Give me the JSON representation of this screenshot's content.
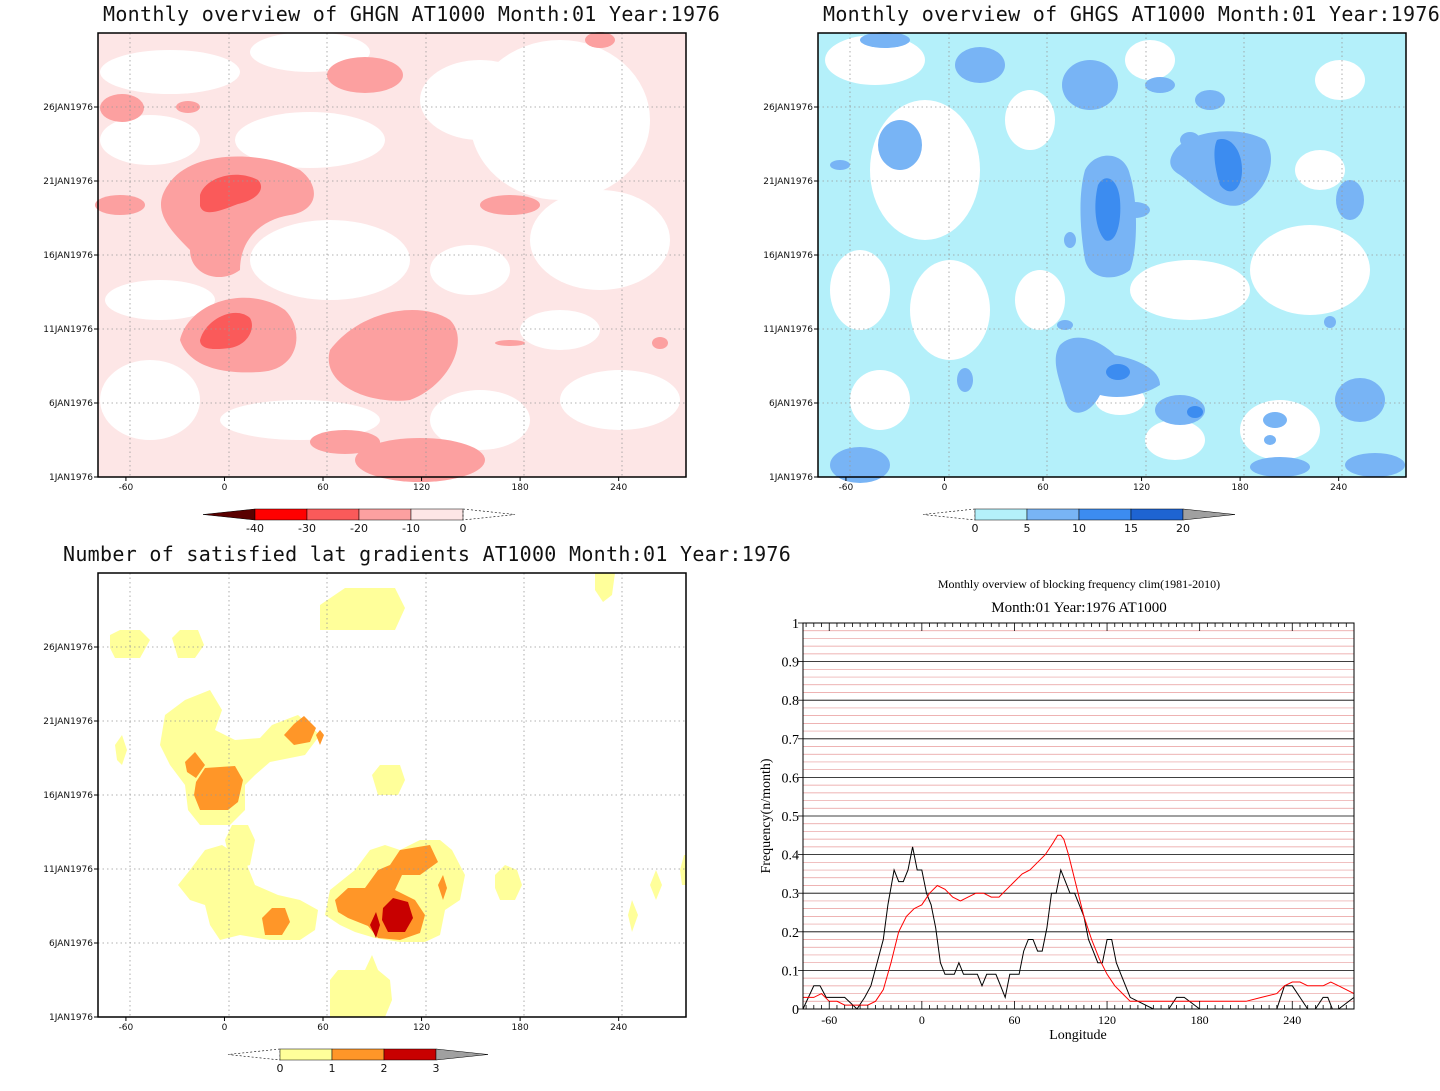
{
  "panels": {
    "ghgn": {
      "title": "Monthly overview of GHGN AT1000 Month:01 Year:1976",
      "type": "heatmap",
      "x_ticks": [
        "-60",
        "0",
        "60",
        "120",
        "180",
        "240"
      ],
      "y_ticks": [
        "1JAN1976",
        "6JAN1976",
        "11JAN1976",
        "16JAN1976",
        "21JAN1976",
        "26JAN1976"
      ],
      "colorbar": {
        "labels": [
          "-40",
          "-30",
          "-20",
          "-10",
          "0"
        ],
        "colors": [
          "#5a0000",
          "#ff0000",
          "#fa5a5a",
          "#fca0a0",
          "#fde6e6"
        ]
      }
    },
    "ghgs": {
      "title": "Monthly overview of GHGS AT1000 Month:01 Year:1976",
      "type": "heatmap",
      "x_ticks": [
        "-60",
        "0",
        "60",
        "120",
        "180",
        "240"
      ],
      "y_ticks": [
        "1JAN1976",
        "6JAN1976",
        "11JAN1976",
        "16JAN1976",
        "21JAN1976",
        "26JAN1976"
      ],
      "colorbar": {
        "labels": [
          "0",
          "5",
          "10",
          "15",
          "20"
        ],
        "colors": [
          "#b4f0fa",
          "#78b4f5",
          "#3c8cf0",
          "#1e64d2",
          "#a0a0a0"
        ]
      }
    },
    "lat": {
      "title": "Number of satisfied lat gradients AT1000 Month:01 Year:1976",
      "type": "heatmap",
      "x_ticks": [
        "-60",
        "0",
        "60",
        "120",
        "180",
        "240"
      ],
      "y_ticks": [
        "1JAN1976",
        "6JAN1976",
        "11JAN1976",
        "16JAN1976",
        "21JAN1976",
        "26JAN1976"
      ],
      "colorbar": {
        "labels": [
          "0",
          "1",
          "2",
          "3"
        ],
        "colors": [
          "#ffff9a",
          "#ff9628",
          "#c80000",
          "#a0a0a0"
        ]
      }
    },
    "freq": {
      "title": "Monthly overview of blocking frequency clim(1981-2010)",
      "subtitle": "Month:01 Year:1976  AT1000",
      "xlabel": "Longitude",
      "ylabel": "Frequency(n/month)"
    }
  },
  "chart_data": {
    "type": "line",
    "title": "Monthly overview of blocking frequency clim(1981-2010)",
    "subtitle": "Month:01 Year:1976  AT1000",
    "xlabel": "Longitude",
    "ylabel": "Frequency(n/month)",
    "xlim": [
      -77,
      280
    ],
    "ylim": [
      0,
      1
    ],
    "x_ticks": [
      -60,
      0,
      60,
      120,
      180,
      240
    ],
    "y_ticks": [
      0,
      0.1,
      0.2,
      0.3,
      0.4,
      0.5,
      0.6,
      0.7,
      0.8,
      0.9,
      1
    ],
    "grid": true,
    "series": [
      {
        "color": "#000000",
        "x": [
          -77,
          -70,
          -66,
          -62,
          -57,
          -50,
          -42,
          -37,
          -33,
          -29,
          -25,
          -22,
          -18,
          -15,
          -12,
          -9,
          -6,
          -3,
          0,
          3,
          6,
          9,
          12,
          15,
          18,
          21,
          24,
          27,
          30,
          33,
          36,
          39,
          42,
          45,
          48,
          51,
          54,
          57,
          60,
          63,
          66,
          69,
          72,
          75,
          78,
          81,
          84,
          87,
          90,
          93,
          96,
          99,
          102,
          105,
          108,
          111,
          114,
          117,
          120,
          123,
          126,
          129,
          135,
          150,
          160,
          165,
          170,
          180,
          195,
          210,
          225,
          230,
          235,
          240,
          245,
          250,
          255,
          260,
          263,
          266,
          270,
          280
        ],
        "y": [
          0,
          0.06,
          0.06,
          0.03,
          0.03,
          0.03,
          0,
          0.03,
          0.06,
          0.12,
          0.18,
          0.27,
          0.36,
          0.33,
          0.33,
          0.36,
          0.42,
          0.36,
          0.36,
          0.3,
          0.27,
          0.21,
          0.12,
          0.09,
          0.09,
          0.09,
          0.12,
          0.09,
          0.09,
          0.09,
          0.09,
          0.06,
          0.09,
          0.09,
          0.09,
          0.06,
          0.03,
          0.09,
          0.09,
          0.09,
          0.15,
          0.18,
          0.18,
          0.15,
          0.15,
          0.21,
          0.3,
          0.3,
          0.36,
          0.33,
          0.3,
          0.3,
          0.27,
          0.24,
          0.18,
          0.15,
          0.12,
          0.12,
          0.18,
          0.18,
          0.12,
          0.09,
          0.03,
          0,
          0,
          0.03,
          0.03,
          0,
          0,
          0,
          0,
          0,
          0.06,
          0.06,
          0.03,
          0,
          0,
          0.03,
          0.03,
          0,
          0,
          0.03
        ]
      },
      {
        "color": "#ff0000",
        "x": [
          -77,
          -70,
          -65,
          -60,
          -55,
          -50,
          -45,
          -40,
          -35,
          -30,
          -25,
          -20,
          -15,
          -10,
          -5,
          0,
          5,
          10,
          15,
          20,
          25,
          30,
          35,
          40,
          45,
          50,
          55,
          60,
          65,
          70,
          75,
          80,
          85,
          88,
          90,
          92,
          95,
          100,
          105,
          110,
          115,
          120,
          125,
          130,
          135,
          140,
          150,
          160,
          170,
          180,
          190,
          200,
          210,
          220,
          230,
          235,
          240,
          245,
          250,
          255,
          260,
          265,
          270,
          275,
          280
        ],
        "y": [
          0.03,
          0.03,
          0.04,
          0.02,
          0.02,
          0.01,
          0.01,
          0.01,
          0.01,
          0.02,
          0.05,
          0.12,
          0.2,
          0.24,
          0.26,
          0.27,
          0.3,
          0.32,
          0.31,
          0.29,
          0.28,
          0.29,
          0.3,
          0.3,
          0.29,
          0.29,
          0.31,
          0.33,
          0.35,
          0.36,
          0.38,
          0.4,
          0.43,
          0.45,
          0.45,
          0.44,
          0.4,
          0.32,
          0.24,
          0.18,
          0.13,
          0.09,
          0.06,
          0.04,
          0.02,
          0.02,
          0.02,
          0.02,
          0.02,
          0.02,
          0.02,
          0.02,
          0.02,
          0.03,
          0.04,
          0.06,
          0.07,
          0.07,
          0.06,
          0.06,
          0.06,
          0.07,
          0.06,
          0.05,
          0.04
        ]
      }
    ]
  }
}
